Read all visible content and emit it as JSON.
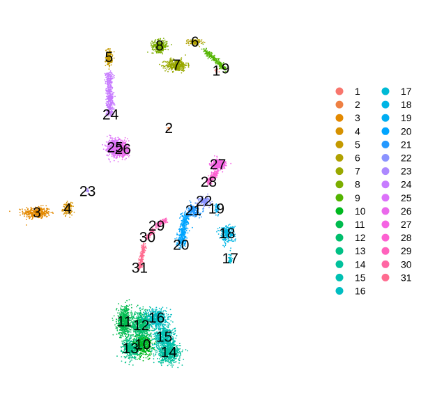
{
  "chart_data": {
    "type": "scatter",
    "title": "",
    "xlabel": "",
    "ylabel": "",
    "xlim": [
      0,
      100
    ],
    "ylim": [
      0,
      100
    ],
    "grid": false,
    "axes_visible": false,
    "legend_position": "right",
    "legend_columns": 2,
    "clusters": [
      {
        "label": "1",
        "color": "#F8766D",
        "x": 66.0,
        "y": 85.5,
        "shape": "blob",
        "spread": [
          0.6,
          0.6
        ],
        "n": 15
      },
      {
        "label": "2",
        "color": "#EE8043",
        "x": 50.5,
        "y": 70.5,
        "shape": "blob",
        "spread": [
          0.5,
          0.5
        ],
        "n": 12
      },
      {
        "label": "3",
        "color": "#E38900",
        "x": 7.5,
        "y": 48.5,
        "shape": "blob",
        "spread": [
          4.0,
          1.4
        ],
        "n": 320
      },
      {
        "label": "4",
        "color": "#D69100",
        "x": 17.5,
        "y": 49.5,
        "shape": "blob",
        "spread": [
          1.4,
          1.4
        ],
        "n": 120
      },
      {
        "label": "5",
        "color": "#C49A00",
        "x": 31.0,
        "y": 89.0,
        "shape": "blob",
        "spread": [
          1.0,
          2.0
        ],
        "n": 160
      },
      {
        "label": "6",
        "color": "#B0A100",
        "x": 59.0,
        "y": 93.0,
        "shape": "blob",
        "spread": [
          2.0,
          0.7
        ],
        "n": 120
      },
      {
        "label": "7",
        "color": "#99A800",
        "x": 53.0,
        "y": 87.0,
        "shape": "blob",
        "spread": [
          3.2,
          1.4
        ],
        "n": 380
      },
      {
        "label": "8",
        "color": "#7CAE00",
        "x": 47.5,
        "y": 92.0,
        "shape": "blob",
        "spread": [
          2.2,
          1.4
        ],
        "n": 300
      },
      {
        "label": "9",
        "color": "#53B400",
        "x": 69.0,
        "y": 86.0,
        "shape": "line",
        "x2": 62.0,
        "y2": 91.0,
        "spread": [
          0.8,
          0.8
        ],
        "n": 220
      },
      {
        "label": "10",
        "color": "#00B81F",
        "x": 42.0,
        "y": 14.0,
        "shape": "blob",
        "spread": [
          2.8,
          2.6
        ],
        "n": 500
      },
      {
        "label": "11",
        "color": "#00BB4E",
        "x": 36.0,
        "y": 20.0,
        "shape": "blob",
        "spread": [
          2.2,
          3.6
        ],
        "n": 550
      },
      {
        "label": "12",
        "color": "#00BE6C",
        "x": 41.5,
        "y": 19.0,
        "shape": "blob",
        "spread": [
          3.0,
          3.0
        ],
        "n": 600
      },
      {
        "label": "13",
        "color": "#00C085",
        "x": 38.0,
        "y": 13.0,
        "shape": "blob",
        "spread": [
          2.2,
          2.4
        ],
        "n": 400
      },
      {
        "label": "14",
        "color": "#00C19C",
        "x": 50.5,
        "y": 12.0,
        "shape": "blob",
        "spread": [
          3.4,
          2.4
        ],
        "n": 600
      },
      {
        "label": "15",
        "color": "#00C0B2",
        "x": 49.0,
        "y": 16.0,
        "shape": "blob",
        "spread": [
          3.0,
          2.8
        ],
        "n": 500
      },
      {
        "label": "16",
        "color": "#00BDC2",
        "x": 46.5,
        "y": 21.0,
        "shape": "blob",
        "spread": [
          3.0,
          2.2
        ],
        "n": 450
      },
      {
        "label": "17",
        "color": "#00BAD5",
        "x": 70.5,
        "y": 36.5,
        "shape": "blob",
        "spread": [
          0.5,
          1.3
        ],
        "n": 40
      },
      {
        "label": "18",
        "color": "#00B5E5",
        "x": 69.5,
        "y": 43.0,
        "shape": "blob",
        "spread": [
          2.2,
          2.0
        ],
        "n": 280
      },
      {
        "label": "19",
        "color": "#00ADF2",
        "x": 66.0,
        "y": 49.5,
        "shape": "blob",
        "spread": [
          0.8,
          1.5
        ],
        "n": 40
      },
      {
        "label": "20",
        "color": "#00A5FF",
        "x": 54.5,
        "y": 40.0,
        "shape": "line",
        "x2": 56.0,
        "y2": 48.0,
        "spread": [
          1.4,
          1.0
        ],
        "n": 420
      },
      {
        "label": "21",
        "color": "#2599FF",
        "x": 58.5,
        "y": 49.0,
        "shape": "blob",
        "spread": [
          1.8,
          1.4
        ],
        "n": 180
      },
      {
        "label": "22",
        "color": "#8B93FF",
        "x": 62.0,
        "y": 51.5,
        "shape": "blob",
        "spread": [
          1.8,
          1.2
        ],
        "n": 140
      },
      {
        "label": "23",
        "color": "#AC88FF",
        "x": 24.0,
        "y": 54.0,
        "shape": "blob",
        "spread": [
          0.5,
          0.5
        ],
        "n": 12
      },
      {
        "label": "24",
        "color": "#C77CFF",
        "x": 31.5,
        "y": 74.0,
        "shape": "line",
        "x2": 31.0,
        "y2": 85.0,
        "spread": [
          1.2,
          1.0
        ],
        "n": 450
      },
      {
        "label": "25",
        "color": "#DC71FA",
        "x": 33.0,
        "y": 65.5,
        "shape": "blob",
        "spread": [
          2.4,
          2.2
        ],
        "n": 500
      },
      {
        "label": "26",
        "color": "#EA69EB",
        "x": 35.5,
        "y": 65.0,
        "shape": "blob",
        "spread": [
          2.0,
          1.8
        ],
        "n": 350
      },
      {
        "label": "27",
        "color": "#F564E3",
        "x": 66.5,
        "y": 61.0,
        "shape": "blob",
        "spread": [
          2.0,
          1.3
        ],
        "n": 320
      },
      {
        "label": "28",
        "color": "#FD61D1",
        "x": 63.5,
        "y": 56.5,
        "shape": "line",
        "x2": 66.0,
        "y2": 59.0,
        "spread": [
          0.8,
          0.8
        ],
        "n": 180
      },
      {
        "label": "29",
        "color": "#FF62BC",
        "x": 46.5,
        "y": 45.0,
        "shape": "line",
        "x2": 49.5,
        "y2": 46.5,
        "spread": [
          0.8,
          0.6
        ],
        "n": 110
      },
      {
        "label": "30",
        "color": "#FF67A4",
        "x": 43.5,
        "y": 42.0,
        "shape": "line",
        "x2": 45.5,
        "y2": 44.0,
        "spread": [
          0.6,
          0.6
        ],
        "n": 90
      },
      {
        "label": "31",
        "color": "#FF6C90",
        "x": 41.0,
        "y": 34.0,
        "shape": "line",
        "x2": 42.5,
        "y2": 40.0,
        "spread": [
          0.7,
          0.7
        ],
        "n": 200
      }
    ]
  }
}
